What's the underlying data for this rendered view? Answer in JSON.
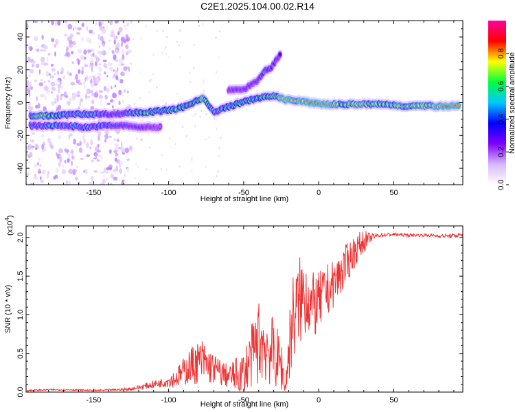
{
  "title": "C2E1.2025.104.00.02.R14",
  "chart_data": [
    {
      "type": "heatmap",
      "xlabel": "Height of straight line (km)",
      "ylabel": "Frequency (Hz)",
      "xlim": [
        -195,
        96
      ],
      "ylim": [
        -50,
        50
      ],
      "xticks": [
        -150,
        -100,
        -50,
        0,
        50
      ],
      "yticks": [
        -40,
        -20,
        0,
        20,
        40
      ],
      "colorbar": {
        "label": "Normalized spectral amplitude",
        "range": [
          0,
          1
        ],
        "ticks": [
          0.0,
          0.2,
          0.4,
          0.6,
          0.8
        ],
        "colormap": [
          "#ffffff",
          "#d8b8ff",
          "#8000ff",
          "#0000ff",
          "#00c8ff",
          "#00ff40",
          "#ffff00",
          "#ff0000",
          "#ff00a0"
        ]
      },
      "ridge": [
        {
          "x": -192,
          "y": -8,
          "a": 0.55
        },
        {
          "x": -185,
          "y": -8,
          "a": 0.75
        },
        {
          "x": -175,
          "y": -8,
          "a": 0.6
        },
        {
          "x": -165,
          "y": -7,
          "a": 0.5
        },
        {
          "x": -155,
          "y": -7,
          "a": 0.55
        },
        {
          "x": -145,
          "y": -7,
          "a": 0.45
        },
        {
          "x": -135,
          "y": -7,
          "a": 0.35
        },
        {
          "x": -125,
          "y": -6,
          "a": 0.5
        },
        {
          "x": -115,
          "y": -6,
          "a": 0.7
        },
        {
          "x": -105,
          "y": -5,
          "a": 0.55
        },
        {
          "x": -95,
          "y": -4,
          "a": 0.65
        },
        {
          "x": -88,
          "y": -2,
          "a": 0.55
        },
        {
          "x": -82,
          "y": 1,
          "a": 0.6
        },
        {
          "x": -77,
          "y": 3,
          "a": 0.75
        },
        {
          "x": -70,
          "y": -6,
          "a": 0.5
        },
        {
          "x": -62,
          "y": -3,
          "a": 0.55
        },
        {
          "x": -55,
          "y": -1,
          "a": 0.6
        },
        {
          "x": -48,
          "y": 1,
          "a": 0.6
        },
        {
          "x": -40,
          "y": 3,
          "a": 0.6
        },
        {
          "x": -30,
          "y": 4,
          "a": 0.65
        },
        {
          "x": -22,
          "y": 2,
          "a": 0.8
        },
        {
          "x": -15,
          "y": 1,
          "a": 0.75
        },
        {
          "x": -5,
          "y": 0,
          "a": 0.85
        },
        {
          "x": 5,
          "y": -1,
          "a": 0.8
        },
        {
          "x": 15,
          "y": -1,
          "a": 0.7
        },
        {
          "x": 25,
          "y": -1,
          "a": 0.75
        },
        {
          "x": 35,
          "y": -1,
          "a": 0.7
        },
        {
          "x": 45,
          "y": -1,
          "a": 0.7
        },
        {
          "x": 55,
          "y": -2,
          "a": 0.7
        },
        {
          "x": 65,
          "y": -2,
          "a": 0.7
        },
        {
          "x": 75,
          "y": -2,
          "a": 0.75
        },
        {
          "x": 85,
          "y": -2,
          "a": 0.85
        },
        {
          "x": 94,
          "y": -2,
          "a": 0.8
        }
      ],
      "second_ridge": [
        {
          "x": -192,
          "y": -14,
          "a": 0.45
        },
        {
          "x": -180,
          "y": -14,
          "a": 0.5
        },
        {
          "x": -168,
          "y": -14,
          "a": 0.45
        },
        {
          "x": -155,
          "y": -15,
          "a": 0.5
        },
        {
          "x": -142,
          "y": -14,
          "a": 0.45
        },
        {
          "x": -130,
          "y": -14,
          "a": 0.35
        },
        {
          "x": -118,
          "y": -15,
          "a": 0.3
        },
        {
          "x": -105,
          "y": -15,
          "a": 0.25
        }
      ],
      "upper_branch": [
        {
          "x": -60,
          "y": 8,
          "a": 0.3
        },
        {
          "x": -50,
          "y": 8,
          "a": 0.3
        },
        {
          "x": -40,
          "y": 14,
          "a": 0.35
        },
        {
          "x": -36,
          "y": 19,
          "a": 0.45
        },
        {
          "x": -32,
          "y": 21,
          "a": 0.4
        },
        {
          "x": -25,
          "y": 30,
          "a": 0.3
        }
      ]
    },
    {
      "type": "line",
      "xlabel": "Height of straight line (km)",
      "ylabel": "SNR (10 * v/v)",
      "scale_label": "(x10",
      "scale_exp": "4",
      "xlim": [
        -195,
        96
      ],
      "ylim": [
        0,
        2.15
      ],
      "xticks": [
        -150,
        -100,
        -50,
        0,
        50
      ],
      "yticks": [
        0.0,
        0.5,
        1.0,
        1.5,
        2.0
      ],
      "line_color": "#ee3333",
      "x": [
        -195,
        -180,
        -165,
        -150,
        -135,
        -125,
        -115,
        -105,
        -95,
        -85,
        -78,
        -70,
        -60,
        -50,
        -45,
        -40,
        -35,
        -30,
        -25,
        -22,
        -18,
        -12,
        -8,
        -5,
        0,
        5,
        10,
        15,
        20,
        25,
        30,
        35,
        40,
        50,
        60,
        70,
        80,
        90,
        96
      ],
      "values": [
        0.02,
        0.03,
        0.03,
        0.02,
        0.03,
        0.04,
        0.08,
        0.12,
        0.18,
        0.35,
        0.4,
        0.3,
        0.2,
        0.25,
        0.45,
        0.65,
        0.6,
        0.5,
        0.35,
        0.1,
        0.9,
        1.2,
        1.3,
        1.1,
        1.15,
        1.3,
        1.4,
        1.55,
        1.7,
        1.85,
        1.95,
        2.0,
        2.03,
        2.04,
        2.03,
        2.03,
        2.02,
        2.02,
        2.04
      ],
      "noise_amplitude": [
        0.01,
        0.01,
        0.01,
        0.01,
        0.01,
        0.02,
        0.04,
        0.06,
        0.12,
        0.25,
        0.3,
        0.2,
        0.15,
        0.3,
        0.4,
        0.55,
        0.5,
        0.45,
        0.35,
        0.2,
        0.6,
        0.6,
        0.55,
        0.45,
        0.4,
        0.35,
        0.3,
        0.3,
        0.25,
        0.2,
        0.15,
        0.05,
        0.03,
        0.02,
        0.02,
        0.02,
        0.02,
        0.03,
        0.03
      ]
    }
  ]
}
